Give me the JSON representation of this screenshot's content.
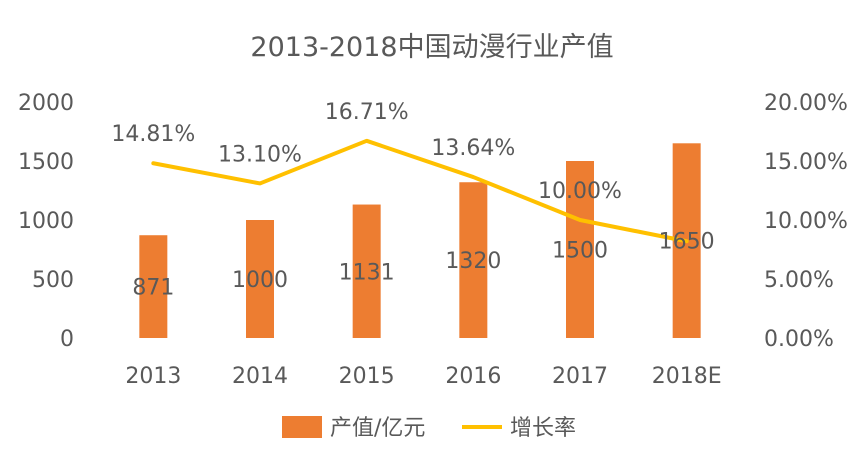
{
  "chart_data": {
    "type": "bar",
    "title": "2013-2018中国动漫行业产值",
    "categories": [
      "2013",
      "2014",
      "2015",
      "2016",
      "2017",
      "2018E"
    ],
    "series": [
      {
        "name": "产值/亿元",
        "type": "bar",
        "axis": "left",
        "values": [
          871,
          1000,
          1131,
          1320,
          1500,
          1650
        ],
        "labels": [
          "871",
          "1000",
          "1131",
          "1320",
          "1500",
          "1650"
        ]
      },
      {
        "name": "增长率",
        "type": "line",
        "axis": "right",
        "values": [
          14.81,
          13.1,
          16.71,
          13.64,
          10.0,
          8.2
        ],
        "labels": [
          "14.81%",
          "13.10%",
          "16.71%",
          "13.64%",
          "10.00%",
          ""
        ]
      }
    ],
    "y_left": {
      "ylim": [
        0,
        2000
      ],
      "ticks": [
        "0",
        "500",
        "1000",
        "1500",
        "2000"
      ]
    },
    "y_right": {
      "ylim": [
        0,
        20
      ],
      "ticks": [
        "0.00%",
        "5.00%",
        "10.00%",
        "15.00%",
        "20.00%"
      ]
    },
    "grid": false,
    "legend_position": "bottom",
    "colors": {
      "bar": "#ED7D31",
      "line": "#FFC000",
      "text": "#595959"
    }
  }
}
